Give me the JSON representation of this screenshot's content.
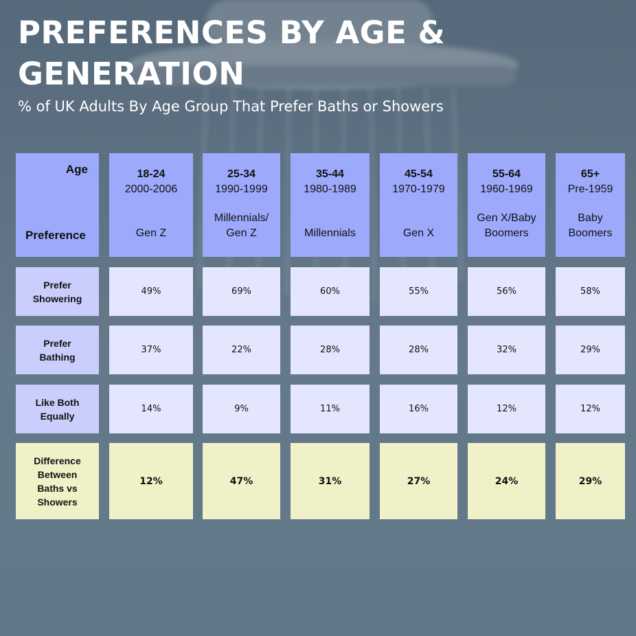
{
  "title": "PREFERENCES BY AGE & GENERATION",
  "subtitle": "% of UK Adults By Age Group That Prefer Baths or Showers",
  "colors": {
    "header": "#9daafc",
    "row_label": "#c9cefc",
    "value_cell": "#e3e6fd",
    "difference_row": "#f1f1c8",
    "background": "#62788a"
  },
  "corner": {
    "top_label": "Age",
    "bottom_label": "Preference"
  },
  "columns": [
    {
      "age": "18-24",
      "years": "2000-2006",
      "gen_line1": "",
      "gen_line2": "Gen Z"
    },
    {
      "age": "25-34",
      "years": "1990-1999",
      "gen_line1": "Millennials/",
      "gen_line2": "Gen Z"
    },
    {
      "age": "35-44",
      "years": "1980-1989",
      "gen_line1": "",
      "gen_line2": "Millennials"
    },
    {
      "age": "45-54",
      "years": "1970-1979",
      "gen_line1": "",
      "gen_line2": "Gen X"
    },
    {
      "age": "55-64",
      "years": "1960-1969",
      "gen_line1": "Gen X/Baby",
      "gen_line2": "Boomers"
    },
    {
      "age": "65+",
      "years": "Pre-1959",
      "gen_line1": "Baby",
      "gen_line2": "Boomers"
    }
  ],
  "rows": [
    {
      "label_line1": "Prefer",
      "label_line2": "Showering",
      "values": [
        "49%",
        "69%",
        "60%",
        "55%",
        "56%",
        "58%"
      ]
    },
    {
      "label_line1": "Prefer",
      "label_line2": "Bathing",
      "values": [
        "37%",
        "22%",
        "28%",
        "28%",
        "32%",
        "29%"
      ]
    },
    {
      "label_line1": "Like Both",
      "label_line2": "Equally",
      "values": [
        "14%",
        "9%",
        "11%",
        "16%",
        "12%",
        "12%"
      ]
    }
  ],
  "difference_row": {
    "label_lines": [
      "Difference",
      "Between",
      "Baths vs",
      "Showers"
    ],
    "values": [
      "12%",
      "47%",
      "31%",
      "27%",
      "24%",
      "29%"
    ]
  },
  "chart_data": {
    "type": "table",
    "title": "PREFERENCES BY AGE & GENERATION",
    "subtitle": "% of UK Adults By Age Group That Prefer Baths or Showers",
    "categories": [
      "18-24",
      "25-34",
      "35-44",
      "45-54",
      "55-64",
      "65+"
    ],
    "series": [
      {
        "name": "Prefer Showering",
        "values": [
          49,
          69,
          60,
          55,
          56,
          58
        ]
      },
      {
        "name": "Prefer Bathing",
        "values": [
          37,
          22,
          28,
          28,
          32,
          29
        ]
      },
      {
        "name": "Like Both Equally",
        "values": [
          14,
          9,
          11,
          16,
          12,
          12
        ]
      },
      {
        "name": "Difference Between Baths vs Showers",
        "values": [
          12,
          47,
          31,
          27,
          24,
          29
        ]
      }
    ]
  }
}
